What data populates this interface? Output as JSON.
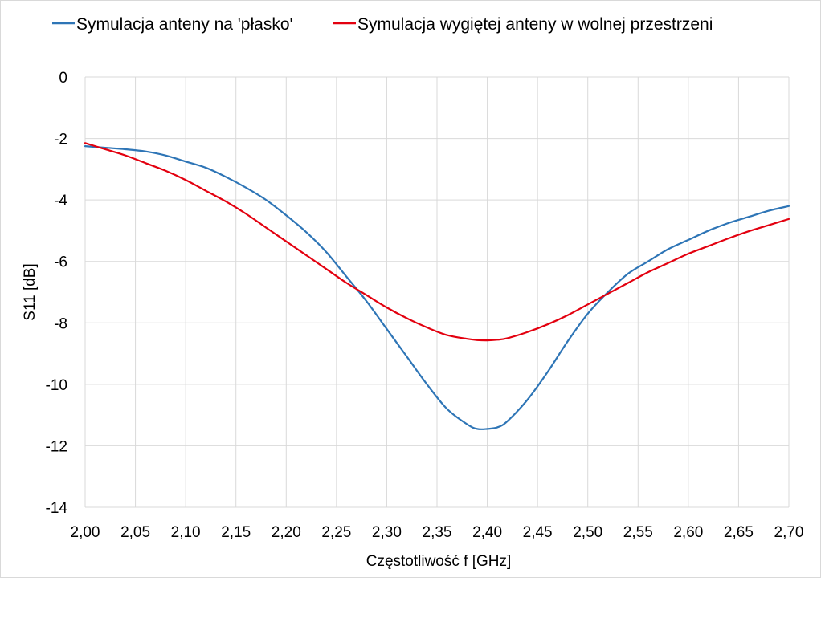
{
  "chart_data": {
    "type": "line",
    "title": "",
    "xlabel": "Częstotliwość f [GHz]",
    "ylabel": "S11 [dB]",
    "xlim": [
      2.0,
      2.7
    ],
    "ylim": [
      -14,
      0
    ],
    "x_ticks": [
      "2,00",
      "2,05",
      "2,10",
      "2,15",
      "2,20",
      "2,25",
      "2,30",
      "2,35",
      "2,40",
      "2,45",
      "2,50",
      "2,55",
      "2,60",
      "2,65",
      "2,70"
    ],
    "y_ticks": [
      "0",
      "-2",
      "-4",
      "-6",
      "-8",
      "-10",
      "-12",
      "-14"
    ],
    "grid": true,
    "legend_position": "top",
    "x": [
      2.0,
      2.02,
      2.04,
      2.06,
      2.08,
      2.1,
      2.12,
      2.14,
      2.16,
      2.18,
      2.2,
      2.22,
      2.24,
      2.26,
      2.28,
      2.3,
      2.32,
      2.34,
      2.36,
      2.38,
      2.39,
      2.4,
      2.41,
      2.42,
      2.44,
      2.46,
      2.48,
      2.5,
      2.52,
      2.54,
      2.56,
      2.58,
      2.6,
      2.62,
      2.64,
      2.66,
      2.68,
      2.7
    ],
    "series": [
      {
        "name": "Symulacja anteny na 'płasko'",
        "color": "#2e75b6",
        "values": [
          -2.25,
          -2.3,
          -2.35,
          -2.42,
          -2.55,
          -2.75,
          -2.95,
          -3.25,
          -3.6,
          -4.0,
          -4.5,
          -5.05,
          -5.7,
          -6.5,
          -7.3,
          -8.2,
          -9.1,
          -10.0,
          -10.8,
          -11.3,
          -11.45,
          -11.45,
          -11.4,
          -11.2,
          -10.5,
          -9.6,
          -8.6,
          -7.7,
          -7.0,
          -6.4,
          -6.0,
          -5.6,
          -5.3,
          -5.0,
          -4.75,
          -4.55,
          -4.35,
          -4.2
        ]
      },
      {
        "name": "Symulacja wygiętej anteny w wolnej przestrzeni",
        "color": "#e3000f",
        "values": [
          -2.15,
          -2.35,
          -2.55,
          -2.8,
          -3.05,
          -3.35,
          -3.7,
          -4.05,
          -4.45,
          -4.9,
          -5.35,
          -5.8,
          -6.25,
          -6.7,
          -7.1,
          -7.5,
          -7.85,
          -8.15,
          -8.4,
          -8.52,
          -8.56,
          -8.57,
          -8.55,
          -8.5,
          -8.3,
          -8.05,
          -7.75,
          -7.4,
          -7.05,
          -6.7,
          -6.35,
          -6.05,
          -5.75,
          -5.5,
          -5.25,
          -5.02,
          -4.82,
          -4.62
        ]
      }
    ]
  }
}
